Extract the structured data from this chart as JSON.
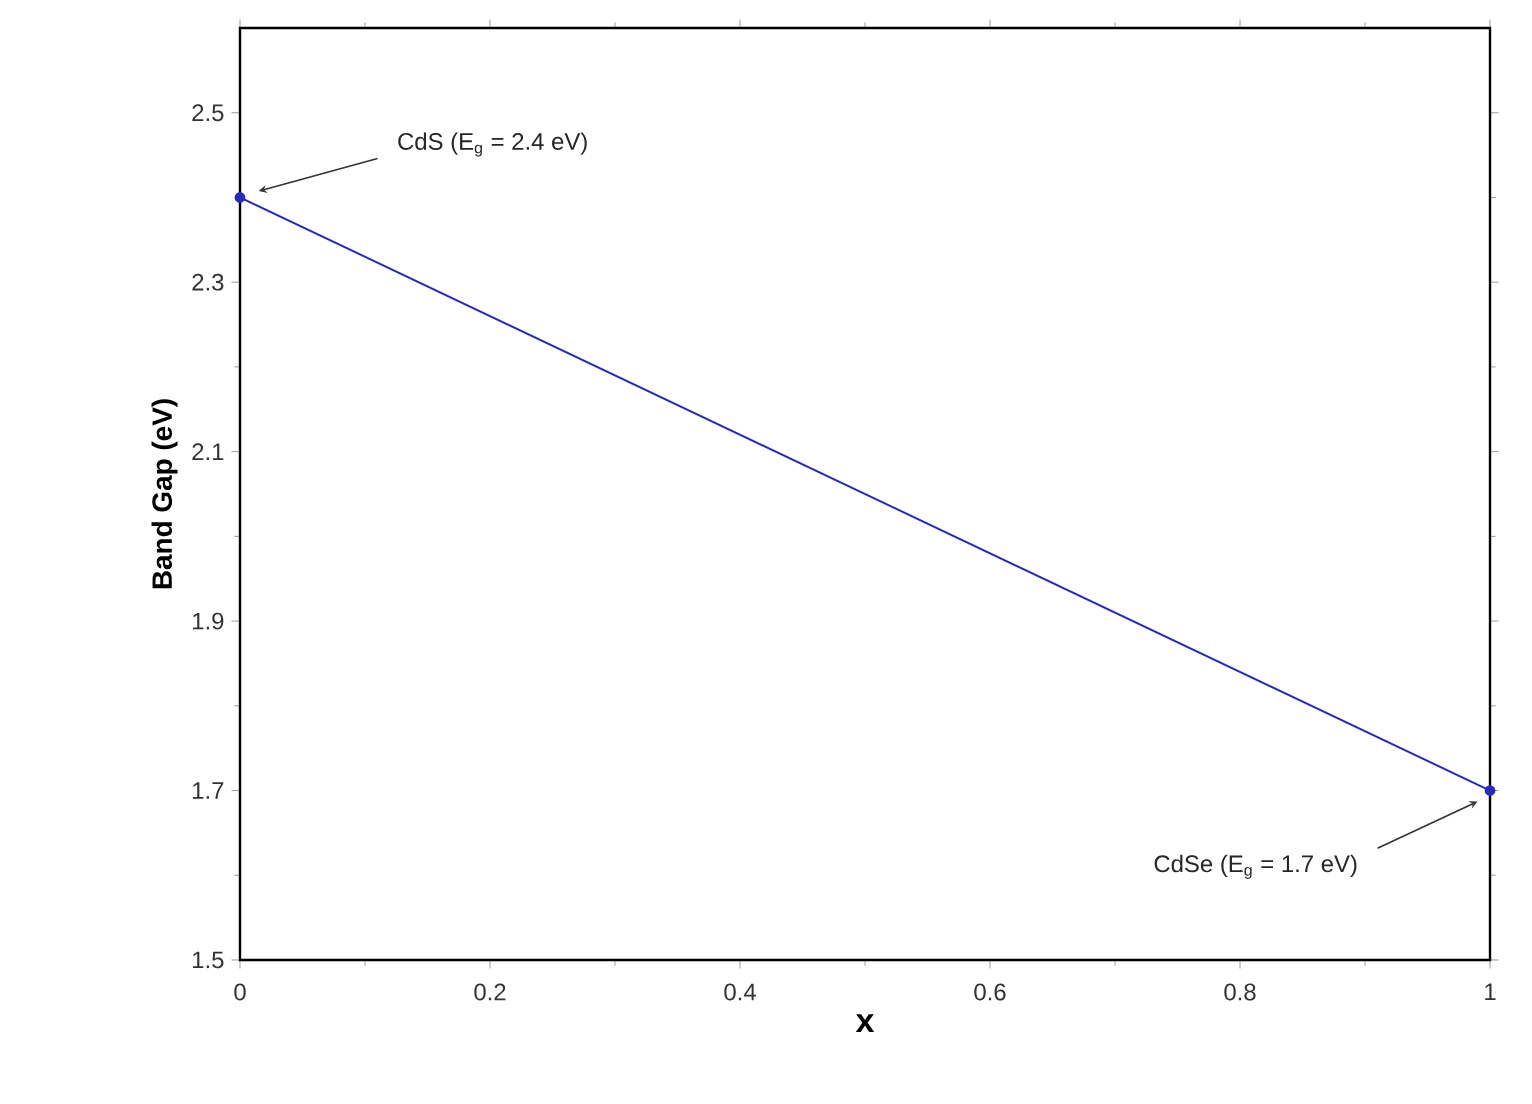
{
  "chart_data": {
    "type": "line",
    "xlabel": "x",
    "ylabel": "Band Gap (eV)",
    "x": [
      0,
      1
    ],
    "series": [
      {
        "color": "#2a2ab8",
        "values": [
          2.4,
          1.7
        ]
      }
    ],
    "xlim": [
      0,
      1
    ],
    "ylim": [
      1.5,
      2.6
    ],
    "xticks": [
      0,
      0.2,
      0.4,
      0.6,
      0.8,
      1
    ],
    "yticks": [
      1.5,
      1.7,
      1.9,
      2.1,
      2.3,
      2.5
    ],
    "marker": "circle",
    "line_style": "solid",
    "grid": false,
    "annotations": [
      "CdS (E$_{g}$ = 2.4 eV)",
      "CdSe (E$_{g}$ = 1.7 eV)"
    ]
  }
}
